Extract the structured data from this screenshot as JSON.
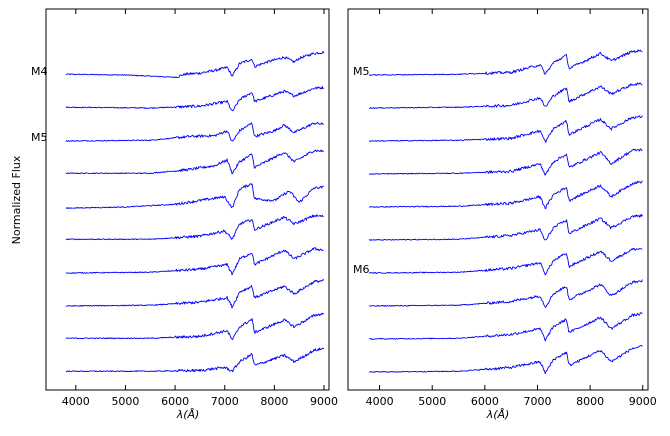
{
  "chart_data": [
    {
      "type": "line",
      "panel": "left",
      "ylabel": "Normalized Flux",
      "xlabel": "λ(Å)",
      "xlim": [
        3400,
        9100
      ],
      "x_ticks": [
        4000,
        5000,
        6000,
        7000,
        8000,
        9000
      ],
      "grid": false,
      "annotations": [
        {
          "text": "M4",
          "series_index": 0
        },
        {
          "text": "M5",
          "series_index": 2
        }
      ],
      "series": [
        {
          "start": 3800,
          "points": [
            [
              3800,
              0.3
            ],
            [
              5000,
              0.28
            ],
            [
              6000,
              0.22
            ],
            [
              6200,
              0.3
            ],
            [
              6500,
              0.33
            ],
            [
              6800,
              0.4
            ],
            [
              7050,
              0.48
            ],
            [
              7150,
              0.25
            ],
            [
              7300,
              0.58
            ],
            [
              7550,
              0.7
            ],
            [
              7600,
              0.5
            ],
            [
              7800,
              0.6
            ],
            [
              8200,
              0.75
            ],
            [
              8400,
              0.62
            ],
            [
              8500,
              0.72
            ],
            [
              8800,
              0.85
            ],
            [
              9000,
              0.88
            ]
          ]
        },
        {
          "start": 3800,
          "points": [
            [
              3800,
              0.3
            ],
            [
              5500,
              0.28
            ],
            [
              6500,
              0.33
            ],
            [
              7050,
              0.45
            ],
            [
              7150,
              0.18
            ],
            [
              7300,
              0.5
            ],
            [
              7550,
              0.7
            ],
            [
              7600,
              0.45
            ],
            [
              8200,
              0.72
            ],
            [
              8400,
              0.6
            ],
            [
              8800,
              0.8
            ],
            [
              9000,
              0.82
            ]
          ]
        },
        {
          "start": 3800,
          "points": [
            [
              3800,
              0.28
            ],
            [
              5500,
              0.3
            ],
            [
              6300,
              0.4
            ],
            [
              6800,
              0.42
            ],
            [
              7050,
              0.55
            ],
            [
              7150,
              0.25
            ],
            [
              7300,
              0.55
            ],
            [
              7550,
              0.75
            ],
            [
              7600,
              0.4
            ],
            [
              8000,
              0.55
            ],
            [
              8200,
              0.7
            ],
            [
              8400,
              0.5
            ],
            [
              8800,
              0.75
            ],
            [
              9000,
              0.72
            ]
          ]
        },
        {
          "start": 3800,
          "points": [
            [
              3800,
              0.3
            ],
            [
              5500,
              0.3
            ],
            [
              6300,
              0.4
            ],
            [
              6800,
              0.5
            ],
            [
              7050,
              0.65
            ],
            [
              7150,
              0.3
            ],
            [
              7300,
              0.6
            ],
            [
              7550,
              0.8
            ],
            [
              7600,
              0.45
            ],
            [
              8200,
              0.85
            ],
            [
              8400,
              0.6
            ],
            [
              8800,
              0.9
            ],
            [
              9000,
              0.88
            ]
          ]
        },
        {
          "start": 3800,
          "points": [
            [
              3800,
              0.25
            ],
            [
              5000,
              0.28
            ],
            [
              6000,
              0.35
            ],
            [
              6500,
              0.45
            ],
            [
              7000,
              0.55
            ],
            [
              7150,
              0.25
            ],
            [
              7300,
              0.75
            ],
            [
              7550,
              0.9
            ],
            [
              7600,
              0.5
            ],
            [
              8000,
              0.45
            ],
            [
              8300,
              0.7
            ],
            [
              8500,
              0.4
            ],
            [
              8800,
              0.78
            ],
            [
              9000,
              0.8
            ]
          ]
        },
        {
          "start": 3800,
          "points": [
            [
              3800,
              0.3
            ],
            [
              5500,
              0.3
            ],
            [
              6500,
              0.38
            ],
            [
              7000,
              0.52
            ],
            [
              7150,
              0.3
            ],
            [
              7300,
              0.7
            ],
            [
              7550,
              0.82
            ],
            [
              7600,
              0.55
            ],
            [
              8200,
              0.88
            ],
            [
              8400,
              0.7
            ],
            [
              8800,
              0.92
            ],
            [
              9000,
              0.9
            ]
          ]
        },
        {
          "start": 3800,
          "points": [
            [
              3800,
              0.28
            ],
            [
              5500,
              0.3
            ],
            [
              6500,
              0.38
            ],
            [
              7050,
              0.5
            ],
            [
              7150,
              0.25
            ],
            [
              7300,
              0.65
            ],
            [
              7550,
              0.82
            ],
            [
              7600,
              0.5
            ],
            [
              8200,
              0.88
            ],
            [
              8400,
              0.65
            ],
            [
              8800,
              0.92
            ],
            [
              9000,
              0.88
            ]
          ]
        },
        {
          "start": 3800,
          "points": [
            [
              3800,
              0.28
            ],
            [
              5500,
              0.3
            ],
            [
              6500,
              0.38
            ],
            [
              7050,
              0.5
            ],
            [
              7150,
              0.25
            ],
            [
              7300,
              0.65
            ],
            [
              7550,
              0.8
            ],
            [
              7600,
              0.5
            ],
            [
              8200,
              0.8
            ],
            [
              8400,
              0.6
            ],
            [
              8800,
              0.92
            ],
            [
              9000,
              0.95
            ]
          ]
        },
        {
          "start": 3800,
          "points": [
            [
              3800,
              0.3
            ],
            [
              5500,
              0.3
            ],
            [
              6500,
              0.35
            ],
            [
              7050,
              0.5
            ],
            [
              7150,
              0.25
            ],
            [
              7300,
              0.6
            ],
            [
              7550,
              0.8
            ],
            [
              7600,
              0.45
            ],
            [
              8200,
              0.78
            ],
            [
              8400,
              0.6
            ],
            [
              8800,
              0.9
            ],
            [
              9000,
              0.95
            ]
          ]
        },
        {
          "start": 3800,
          "points": [
            [
              3800,
              0.3
            ],
            [
              5500,
              0.3
            ],
            [
              6500,
              0.32
            ],
            [
              7000,
              0.4
            ],
            [
              7150,
              0.3
            ],
            [
              7300,
              0.55
            ],
            [
              7550,
              0.75
            ],
            [
              7600,
              0.45
            ],
            [
              8200,
              0.72
            ],
            [
              8400,
              0.55
            ],
            [
              8800,
              0.85
            ],
            [
              9000,
              0.9
            ]
          ]
        }
      ]
    },
    {
      "type": "line",
      "panel": "right",
      "xlabel": "λ(Å)",
      "xlim": [
        3400,
        9100
      ],
      "x_ticks": [
        4000,
        5000,
        6000,
        7000,
        8000,
        9000
      ],
      "grid": false,
      "annotations": [
        {
          "text": "M5",
          "series_index": 0
        },
        {
          "text": "M6",
          "series_index": 6
        }
      ],
      "series": [
        {
          "start": 3800,
          "points": [
            [
              3800,
              0.28
            ],
            [
              5500,
              0.3
            ],
            [
              6500,
              0.35
            ],
            [
              7050,
              0.55
            ],
            [
              7150,
              0.3
            ],
            [
              7300,
              0.6
            ],
            [
              7550,
              0.8
            ],
            [
              7600,
              0.45
            ],
            [
              8200,
              0.85
            ],
            [
              8400,
              0.65
            ],
            [
              8800,
              0.9
            ],
            [
              9000,
              0.92
            ]
          ]
        },
        {
          "start": 3800,
          "points": [
            [
              3800,
              0.28
            ],
            [
              5500,
              0.3
            ],
            [
              6500,
              0.35
            ],
            [
              7050,
              0.55
            ],
            [
              7150,
              0.3
            ],
            [
              7300,
              0.6
            ],
            [
              7550,
              0.8
            ],
            [
              7600,
              0.45
            ],
            [
              8200,
              0.85
            ],
            [
              8400,
              0.65
            ],
            [
              8800,
              0.9
            ],
            [
              9000,
              0.92
            ]
          ]
        },
        {
          "start": 3800,
          "points": [
            [
              3800,
              0.28
            ],
            [
              5500,
              0.3
            ],
            [
              6500,
              0.35
            ],
            [
              7050,
              0.55
            ],
            [
              7150,
              0.25
            ],
            [
              7300,
              0.6
            ],
            [
              7550,
              0.8
            ],
            [
              7600,
              0.45
            ],
            [
              8200,
              0.85
            ],
            [
              8400,
              0.6
            ],
            [
              8800,
              0.9
            ],
            [
              9000,
              0.92
            ]
          ]
        },
        {
          "start": 3800,
          "points": [
            [
              3800,
              0.28
            ],
            [
              5500,
              0.3
            ],
            [
              6500,
              0.35
            ],
            [
              7050,
              0.55
            ],
            [
              7150,
              0.25
            ],
            [
              7300,
              0.6
            ],
            [
              7550,
              0.8
            ],
            [
              7600,
              0.45
            ],
            [
              8200,
              0.85
            ],
            [
              8400,
              0.55
            ],
            [
              8800,
              0.9
            ],
            [
              9000,
              0.92
            ]
          ]
        },
        {
          "start": 3800,
          "points": [
            [
              3800,
              0.28
            ],
            [
              5500,
              0.3
            ],
            [
              6500,
              0.38
            ],
            [
              7050,
              0.55
            ],
            [
              7150,
              0.25
            ],
            [
              7300,
              0.6
            ],
            [
              7550,
              0.8
            ],
            [
              7600,
              0.45
            ],
            [
              8200,
              0.85
            ],
            [
              8400,
              0.55
            ],
            [
              8800,
              0.9
            ],
            [
              9000,
              0.95
            ]
          ]
        },
        {
          "start": 3800,
          "points": [
            [
              3800,
              0.28
            ],
            [
              5500,
              0.3
            ],
            [
              6500,
              0.4
            ],
            [
              7050,
              0.55
            ],
            [
              7150,
              0.25
            ],
            [
              7300,
              0.6
            ],
            [
              7550,
              0.8
            ],
            [
              7600,
              0.45
            ],
            [
              8200,
              0.85
            ],
            [
              8400,
              0.6
            ],
            [
              8800,
              0.9
            ],
            [
              9000,
              0.92
            ]
          ]
        },
        {
          "start": 3800,
          "points": [
            [
              3800,
              0.28
            ],
            [
              5500,
              0.3
            ],
            [
              6500,
              0.4
            ],
            [
              7050,
              0.55
            ],
            [
              7150,
              0.25
            ],
            [
              7300,
              0.6
            ],
            [
              7550,
              0.8
            ],
            [
              7600,
              0.45
            ],
            [
              8200,
              0.85
            ],
            [
              8400,
              0.6
            ],
            [
              8800,
              0.9
            ],
            [
              9000,
              0.92
            ]
          ]
        },
        {
          "start": 3800,
          "points": [
            [
              3800,
              0.28
            ],
            [
              5500,
              0.3
            ],
            [
              6500,
              0.4
            ],
            [
              7050,
              0.55
            ],
            [
              7150,
              0.25
            ],
            [
              7300,
              0.6
            ],
            [
              7550,
              0.8
            ],
            [
              7600,
              0.45
            ],
            [
              8200,
              0.85
            ],
            [
              8400,
              0.55
            ],
            [
              8800,
              0.9
            ],
            [
              9000,
              0.95
            ]
          ]
        },
        {
          "start": 3800,
          "points": [
            [
              3800,
              0.28
            ],
            [
              5500,
              0.3
            ],
            [
              6500,
              0.4
            ],
            [
              7050,
              0.55
            ],
            [
              7150,
              0.25
            ],
            [
              7300,
              0.6
            ],
            [
              7550,
              0.8
            ],
            [
              7600,
              0.45
            ],
            [
              8200,
              0.85
            ],
            [
              8400,
              0.55
            ],
            [
              8800,
              0.9
            ],
            [
              9000,
              0.95
            ]
          ]
        },
        {
          "start": 3800,
          "points": [
            [
              3800,
              0.28
            ],
            [
              5500,
              0.3
            ],
            [
              6500,
              0.4
            ],
            [
              7050,
              0.55
            ],
            [
              7150,
              0.25
            ],
            [
              7300,
              0.6
            ],
            [
              7550,
              0.8
            ],
            [
              7600,
              0.45
            ],
            [
              8200,
              0.85
            ],
            [
              8400,
              0.55
            ],
            [
              8800,
              0.9
            ],
            [
              9000,
              0.95
            ]
          ]
        }
      ]
    }
  ],
  "colors": {
    "line": "#0000ff",
    "axes": "#000000"
  }
}
